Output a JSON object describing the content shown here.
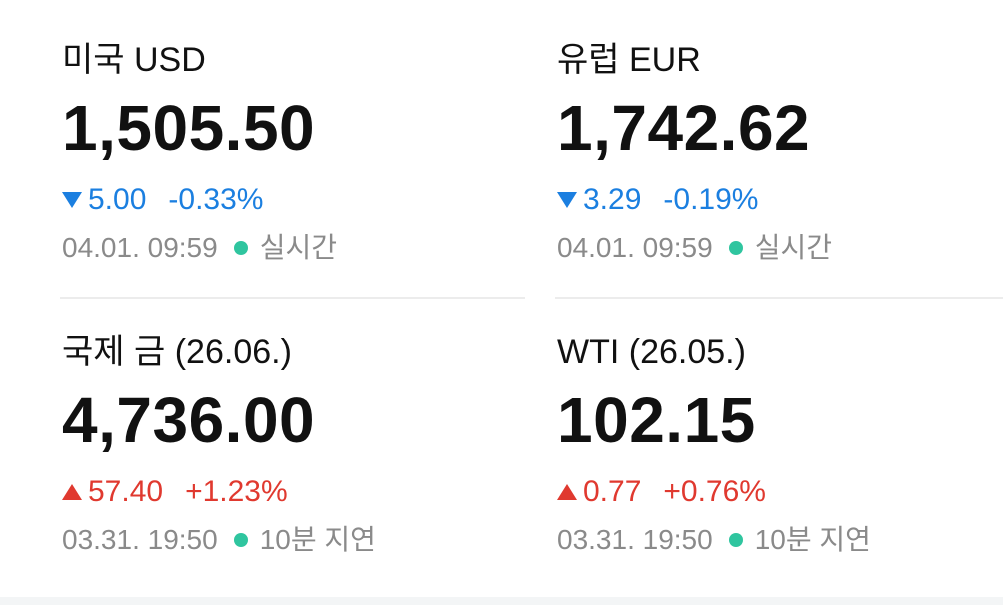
{
  "items": [
    {
      "name": "미국 USD",
      "price": "1,505.50",
      "direction": "down",
      "change": "5.00",
      "percent": "-0.33%",
      "time": "04.01. 09:59",
      "status": "실시간"
    },
    {
      "name": "유럽 EUR",
      "price": "1,742.62",
      "direction": "down",
      "change": "3.29",
      "percent": "-0.19%",
      "time": "04.01. 09:59",
      "status": "실시간"
    },
    {
      "name": "국제 금 (26.06.)",
      "price": "4,736.00",
      "direction": "up",
      "change": "57.40",
      "percent": "+1.23%",
      "time": "03.31. 19:50",
      "status": "10분 지연"
    },
    {
      "name": "WTI (26.05.)",
      "price": "102.15",
      "direction": "up",
      "change": "0.77",
      "percent": "+0.76%",
      "time": "03.31. 19:50",
      "status": "10분 지연"
    }
  ]
}
